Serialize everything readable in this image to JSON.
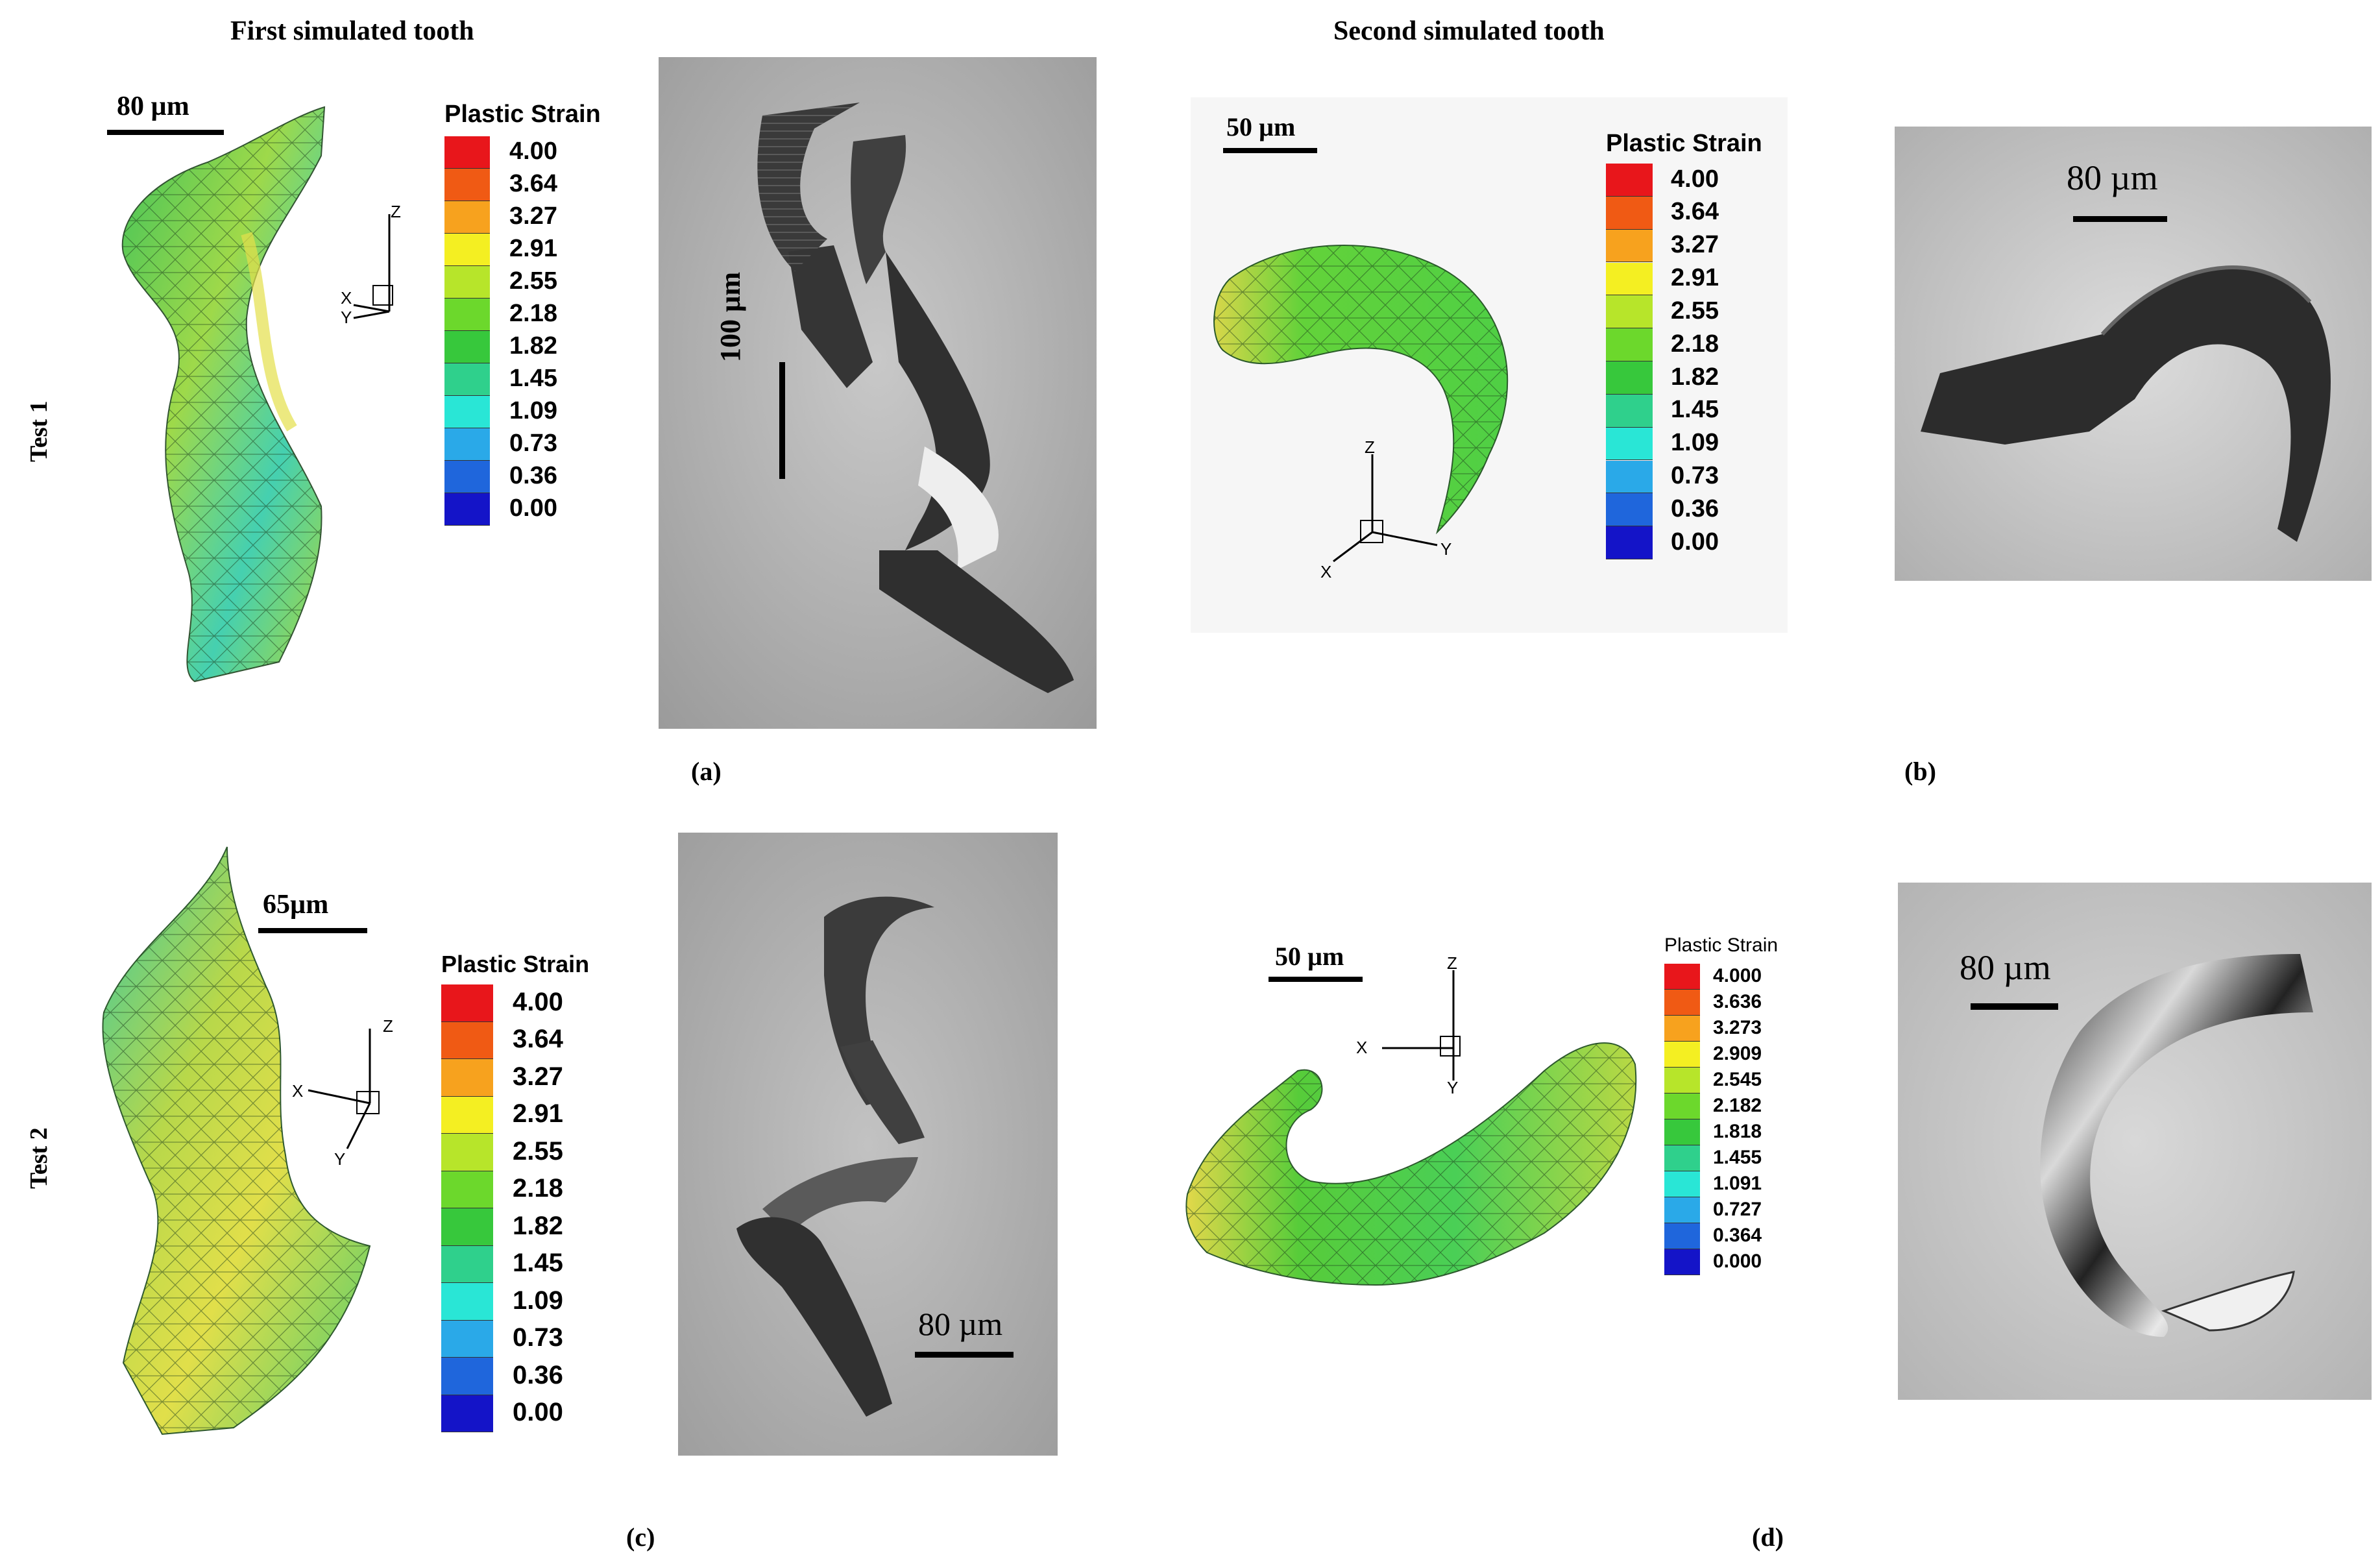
{
  "headers": {
    "first": "First simulated tooth",
    "second": "Second simulated tooth"
  },
  "rows": {
    "test1": "Test 1",
    "test2": "Test 2"
  },
  "panels": {
    "a": "(a)",
    "b": "(b)",
    "c": "(c)",
    "d": "(d)"
  },
  "scales": {
    "a_sim": "80 µm",
    "a_photo": "100 µm",
    "b_sim": "50 µm",
    "b_photo": "80 µm",
    "c_sim": "65µm",
    "c_photo": "80 µm",
    "d_sim": "50 µm",
    "d_photo": "80 µm"
  },
  "axes": {
    "x": "X",
    "y": "Y",
    "z": "Z"
  },
  "legend_a": {
    "title": "Plastic Strain",
    "values": [
      "4.00",
      "3.64",
      "3.27",
      "2.91",
      "2.55",
      "2.18",
      "1.82",
      "1.45",
      "1.09",
      "0.73",
      "0.36",
      "0.00"
    ]
  },
  "legend_b": {
    "title": "Plastic Strain",
    "values": [
      "4.00",
      "3.64",
      "3.27",
      "2.91",
      "2.55",
      "2.18",
      "1.82",
      "1.45",
      "1.09",
      "0.73",
      "0.36",
      "0.00"
    ]
  },
  "legend_c": {
    "title": "Plastic Strain",
    "values": [
      "4.00",
      "3.64",
      "3.27",
      "2.91",
      "2.55",
      "2.18",
      "1.82",
      "1.45",
      "1.09",
      "0.73",
      "0.36",
      "0.00"
    ]
  },
  "legend_d": {
    "title": "Plastic Strain",
    "values": [
      "4.000",
      "3.636",
      "3.273",
      "2.909",
      "2.545",
      "2.182",
      "1.818",
      "1.455",
      "1.091",
      "0.727",
      "0.364",
      "0.000"
    ]
  },
  "colormap": [
    "#e8161b",
    "#f05a14",
    "#f7a21e",
    "#f4ef22",
    "#b7e52a",
    "#6cd82c",
    "#37c83c",
    "#2fd08c",
    "#29e6d6",
    "#2aa9e8",
    "#1f66dc",
    "#1414c8"
  ]
}
